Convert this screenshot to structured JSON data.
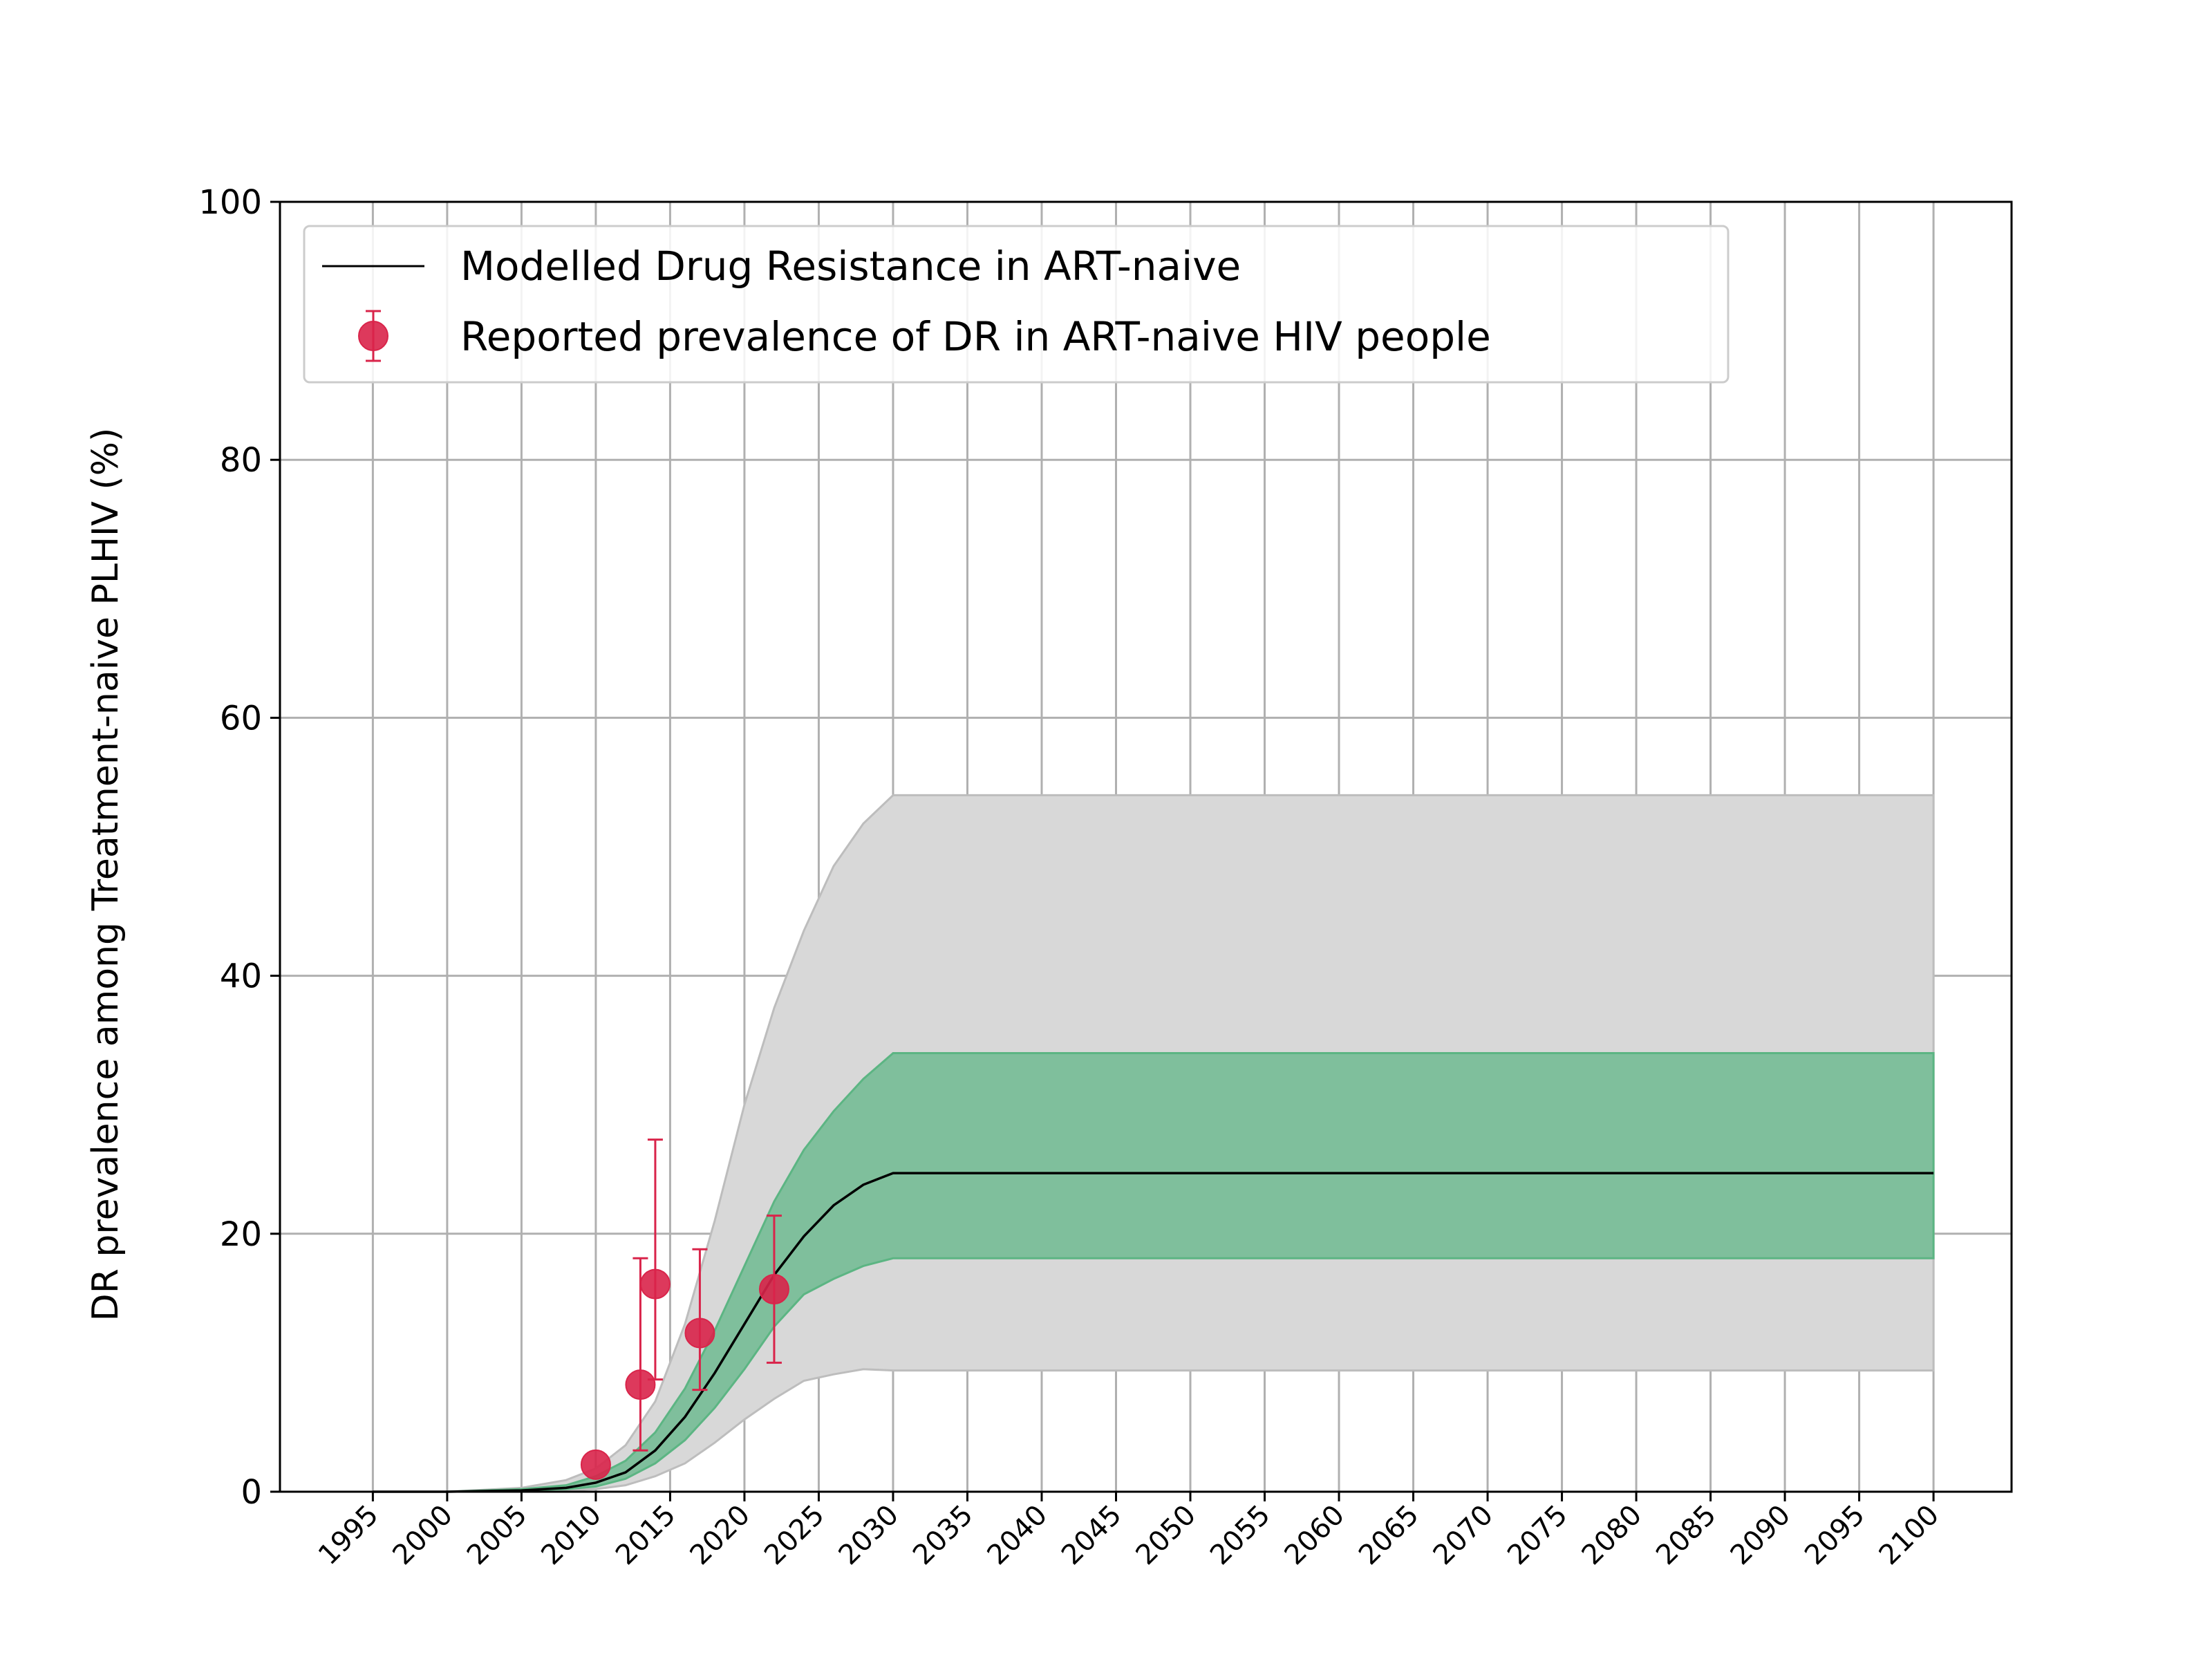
{
  "chart_data": {
    "type": "line",
    "title": "",
    "xlabel": "",
    "ylabel": "DR prevalence among Treatment-naive PLHIV (%)",
    "xlim": [
      1988.75,
      2105.25
    ],
    "ylim": [
      0,
      100
    ],
    "x_ticks": [
      1995,
      2000,
      2005,
      2010,
      2015,
      2020,
      2025,
      2030,
      2035,
      2040,
      2045,
      2050,
      2055,
      2060,
      2065,
      2070,
      2075,
      2080,
      2085,
      2090,
      2095,
      2100
    ],
    "y_ticks": [
      0,
      20,
      40,
      60,
      80,
      100
    ],
    "grid": true,
    "legend_position": "top-left",
    "colors": {
      "model_line": "#000000",
      "inner_band": "#7fbf9c",
      "inner_band_edge": "#5cb583",
      "outer_band": "#d8d8d8",
      "outer_band_edge": "#bdbdbd",
      "points": "#d9244a",
      "grid": "#b0b0b0"
    },
    "series": [
      {
        "name": "Modelled Drug Resistance in ART-naive",
        "type": "line",
        "x": [
          1995,
          2000,
          2005,
          2008,
          2010,
          2012,
          2014,
          2016,
          2018,
          2020,
          2022,
          2024,
          2026,
          2028,
          2030,
          2035,
          2040,
          2050,
          2060,
          2070,
          2080,
          2090,
          2100
        ],
        "y": [
          0,
          0,
          0.1,
          0.3,
          0.7,
          1.5,
          3.2,
          5.8,
          9.2,
          13.0,
          16.8,
          19.8,
          22.2,
          23.8,
          24.7,
          24.7,
          24.7,
          24.7,
          24.7,
          24.7,
          24.7,
          24.7,
          24.7
        ]
      },
      {
        "name": "",
        "type": "band-inner",
        "x": [
          1995,
          2000,
          2005,
          2008,
          2010,
          2012,
          2014,
          2016,
          2018,
          2020,
          2022,
          2024,
          2026,
          2028,
          2030,
          2035,
          2040,
          2050,
          2060,
          2070,
          2080,
          2090,
          2100
        ],
        "lower": [
          0,
          0,
          0.1,
          0.2,
          0.4,
          1.0,
          2.2,
          4.0,
          6.5,
          9.5,
          12.8,
          15.3,
          16.5,
          17.5,
          18.1,
          18.1,
          18.1,
          18.1,
          18.1,
          18.1,
          18.1,
          18.1,
          18.1
        ],
        "upper": [
          0,
          0,
          0.2,
          0.5,
          1.2,
          2.4,
          4.6,
          8.0,
          12.5,
          17.5,
          22.5,
          26.5,
          29.5,
          32.0,
          34.0,
          34.0,
          34.0,
          34.0,
          34.0,
          34.0,
          34.0,
          34.0,
          34.0
        ]
      },
      {
        "name": "",
        "type": "band-outer",
        "x": [
          1995,
          2000,
          2005,
          2008,
          2010,
          2012,
          2014,
          2016,
          2018,
          2020,
          2022,
          2024,
          2026,
          2028,
          2030,
          2035,
          2040,
          2050,
          2060,
          2070,
          2080,
          2090,
          2100
        ],
        "lower": [
          0,
          0,
          0,
          0.1,
          0.2,
          0.5,
          1.2,
          2.2,
          3.8,
          5.6,
          7.2,
          8.6,
          9.1,
          9.5,
          9.4,
          9.4,
          9.4,
          9.4,
          9.4,
          9.4,
          9.4,
          9.4,
          9.4
        ],
        "upper": [
          0,
          0,
          0.3,
          0.9,
          1.8,
          3.6,
          7.0,
          13.0,
          21.0,
          30.0,
          37.5,
          43.5,
          48.5,
          51.8,
          54.0,
          54.0,
          54.0,
          54.0,
          54.0,
          54.0,
          54.0,
          54.0,
          54.0
        ]
      },
      {
        "name": "Reported prevalence of DR in ART-naive HIV people",
        "type": "scatter-errorbar",
        "points": [
          {
            "x": 2010,
            "y": 2.1,
            "lower": 2.1,
            "upper": 2.1
          },
          {
            "x": 2013,
            "y": 8.3,
            "lower": 3.2,
            "upper": 18.1
          },
          {
            "x": 2014,
            "y": 16.1,
            "lower": 8.7,
            "upper": 27.3
          },
          {
            "x": 2017,
            "y": 12.3,
            "lower": 7.9,
            "upper": 18.8
          },
          {
            "x": 2022,
            "y": 15.7,
            "lower": 10.0,
            "upper": 21.4
          }
        ]
      }
    ]
  }
}
